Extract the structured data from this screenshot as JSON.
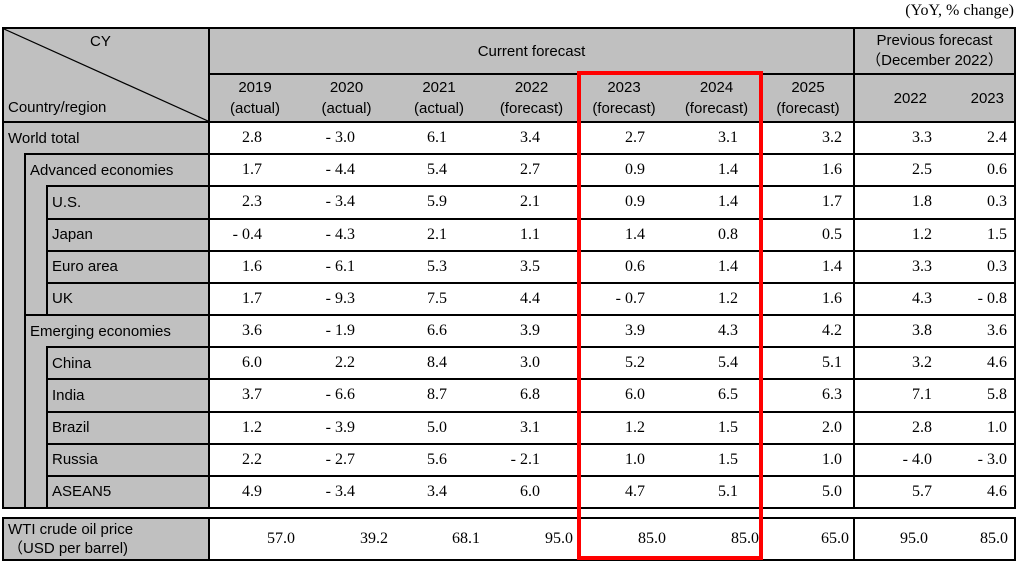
{
  "note": "(YoY, % change)",
  "colors": {
    "header_bg": "#c0c0c0",
    "border": "#000000",
    "highlight_box": "#ff0000"
  },
  "header": {
    "cy": "CY",
    "country_region": "Country/region",
    "current_forecast": "Current forecast",
    "previous_forecast_line1": "Previous forecast",
    "previous_forecast_line2": "（December 2022）",
    "year_cols": [
      {
        "year": "2019",
        "sub": "(actual)"
      },
      {
        "year": "2020",
        "sub": "(actual)"
      },
      {
        "year": "2021",
        "sub": "(actual)"
      },
      {
        "year": "2022",
        "sub": "(forecast)"
      },
      {
        "year": "2023",
        "sub": "(forecast)"
      },
      {
        "year": "2024",
        "sub": "(forecast)"
      },
      {
        "year": "2025",
        "sub": "(forecast)"
      }
    ],
    "prev_year_cols": [
      "2022",
      "2023"
    ]
  },
  "rows": [
    {
      "label": "World total",
      "level": 0,
      "values": [
        "2.8",
        "- 3.0",
        "6.1",
        "3.4",
        "2.7",
        "3.1",
        "3.2",
        "3.3",
        "2.4"
      ]
    },
    {
      "label": "Advanced economies",
      "level": 1,
      "values": [
        "1.7",
        "- 4.4",
        "5.4",
        "2.7",
        "0.9",
        "1.4",
        "1.6",
        "2.5",
        "0.6"
      ]
    },
    {
      "label": "U.S.",
      "level": 2,
      "values": [
        "2.3",
        "- 3.4",
        "5.9",
        "2.1",
        "0.9",
        "1.4",
        "1.7",
        "1.8",
        "0.3"
      ]
    },
    {
      "label": "Japan",
      "level": 2,
      "values": [
        "- 0.4",
        "- 4.3",
        "2.1",
        "1.1",
        "1.4",
        "0.8",
        "0.5",
        "1.2",
        "1.5"
      ]
    },
    {
      "label": "Euro area",
      "level": 2,
      "values": [
        "1.6",
        "- 6.1",
        "5.3",
        "3.5",
        "0.6",
        "1.4",
        "1.4",
        "3.3",
        "0.3"
      ]
    },
    {
      "label": "UK",
      "level": 2,
      "values": [
        "1.7",
        "- 9.3",
        "7.5",
        "4.4",
        "- 0.7",
        "1.2",
        "1.6",
        "4.3",
        "- 0.8"
      ]
    },
    {
      "label": "Emerging economies",
      "level": 1,
      "values": [
        "3.6",
        "- 1.9",
        "6.6",
        "3.9",
        "3.9",
        "4.3",
        "4.2",
        "3.8",
        "3.6"
      ]
    },
    {
      "label": "China",
      "level": 2,
      "values": [
        "6.0",
        "2.2",
        "8.4",
        "3.0",
        "5.2",
        "5.4",
        "5.1",
        "3.2",
        "4.6"
      ]
    },
    {
      "label": "India",
      "level": 2,
      "values": [
        "3.7",
        "- 6.6",
        "8.7",
        "6.8",
        "6.0",
        "6.5",
        "6.3",
        "7.1",
        "5.8"
      ]
    },
    {
      "label": "Brazil",
      "level": 2,
      "values": [
        "1.2",
        "- 3.9",
        "5.0",
        "3.1",
        "1.2",
        "1.5",
        "2.0",
        "2.8",
        "1.0"
      ]
    },
    {
      "label": "Russia",
      "level": 2,
      "values": [
        "2.2",
        "- 2.7",
        "5.6",
        "- 2.1",
        "1.0",
        "1.5",
        "1.0",
        "- 4.0",
        "- 3.0"
      ]
    },
    {
      "label": "ASEAN5",
      "level": 2,
      "values": [
        "4.9",
        "- 3.4",
        "3.4",
        "6.0",
        "4.7",
        "5.1",
        "5.0",
        "5.7",
        "4.6"
      ]
    }
  ],
  "wti": {
    "label_line1": "WTI crude oil price",
    "label_line2": "（USD per barrel)",
    "values": [
      "57.0",
      "39.2",
      "68.1",
      "95.0",
      "85.0",
      "85.0",
      "65.0",
      "95.0",
      "85.0"
    ]
  }
}
